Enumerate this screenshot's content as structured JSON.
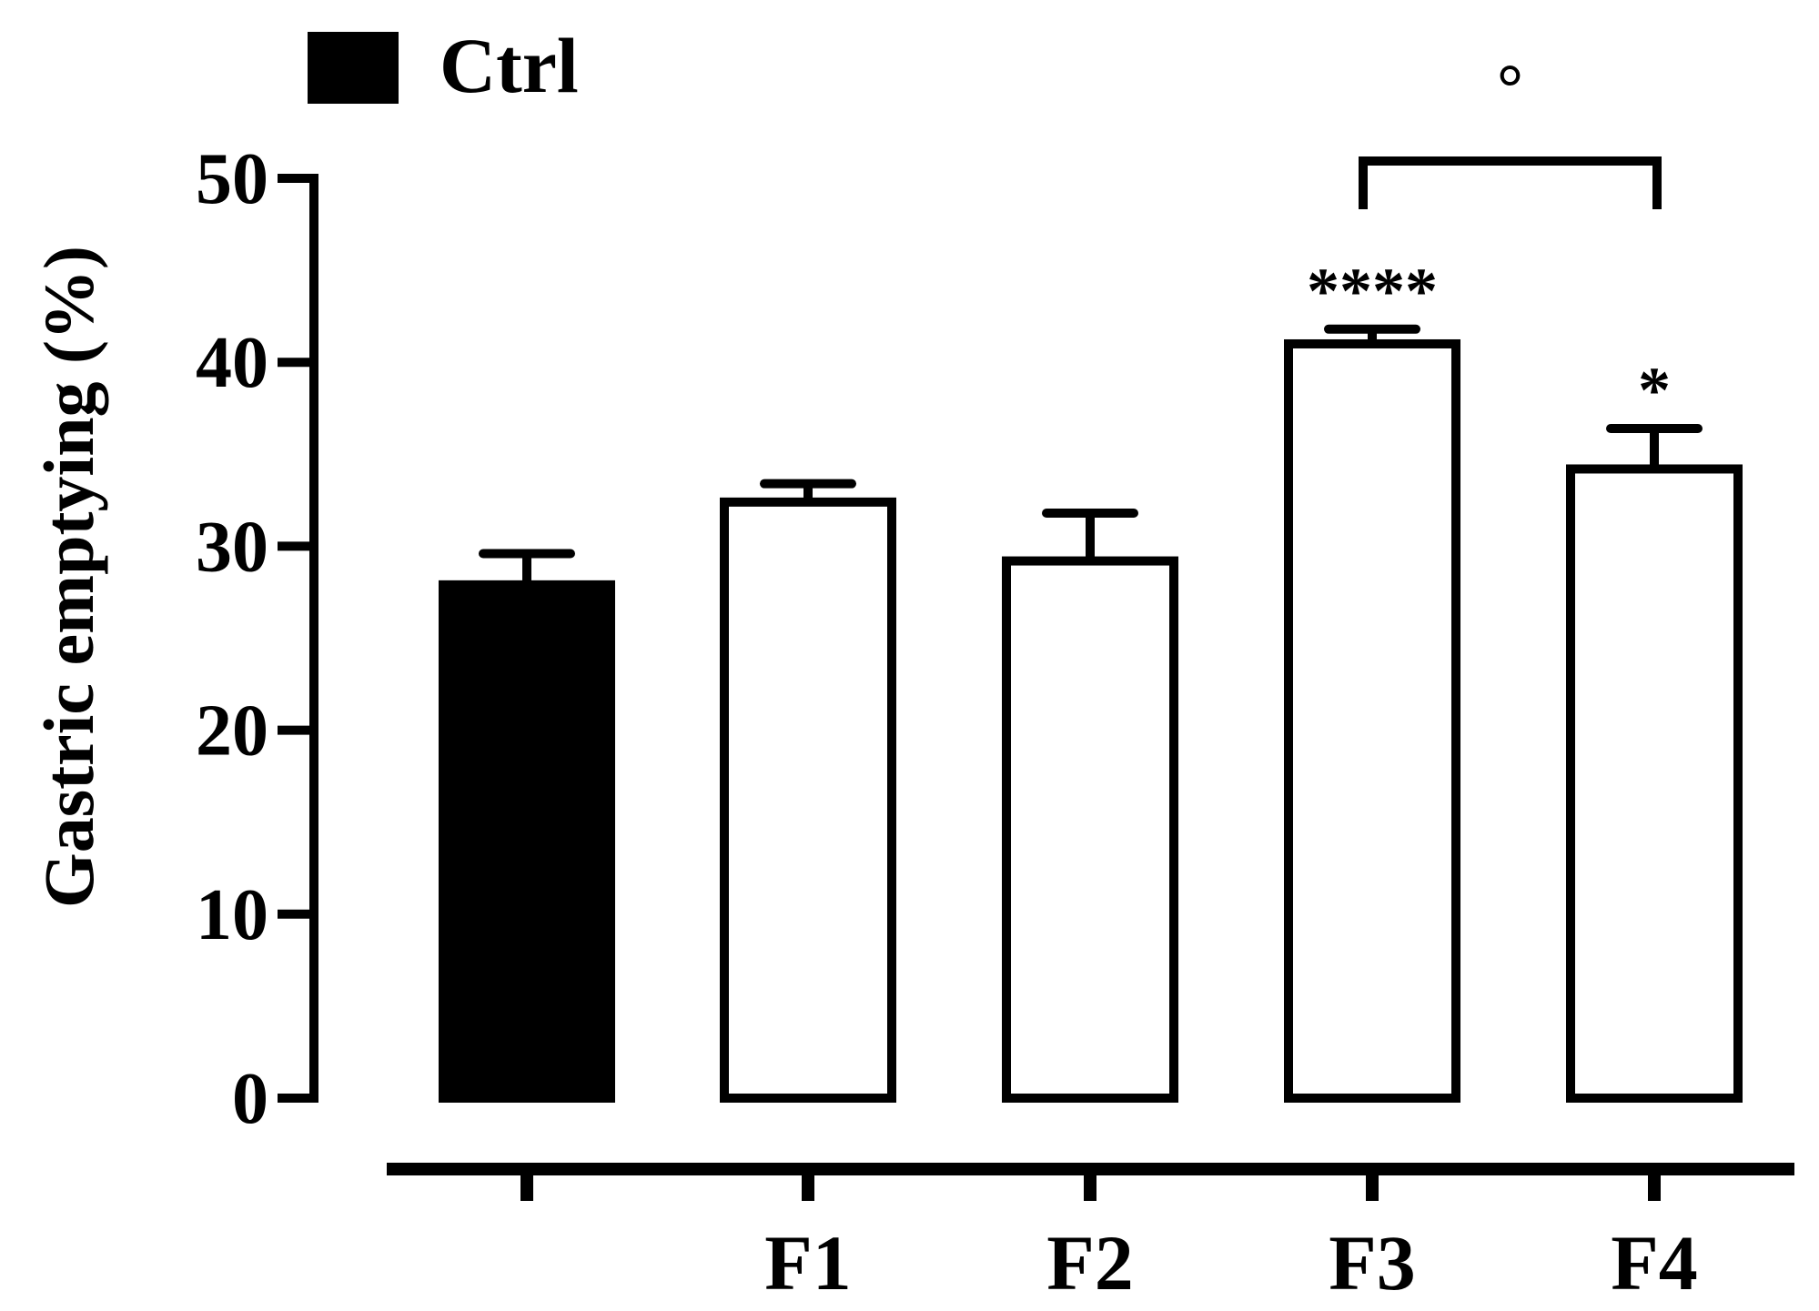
{
  "chart_data": {
    "type": "bar",
    "categories": [
      "",
      "F1",
      "F2",
      "F3",
      "F4"
    ],
    "values": [
      27.9,
      32.4,
      29.2,
      41.0,
      34.2
    ],
    "errors": [
      1.7,
      1.0,
      2.6,
      0.8,
      2.2
    ],
    "fills": [
      "#000000",
      "#ffffff",
      "#ffffff",
      "#ffffff",
      "#ffffff"
    ],
    "ylabel": "Gastric emptying (%)",
    "xlabel": "",
    "ylim": [
      0,
      50
    ],
    "yticks": [
      0,
      10,
      20,
      30,
      40,
      50
    ],
    "legend": {
      "label": "Ctrl",
      "color": "#000000",
      "placement": "top-left"
    },
    "significance": [
      {
        "category": "F3",
        "label": "****"
      },
      {
        "category": "F4",
        "label": "*"
      }
    ],
    "bracket": {
      "from": "F3",
      "to": "F4",
      "label": "°"
    },
    "grid": false
  }
}
